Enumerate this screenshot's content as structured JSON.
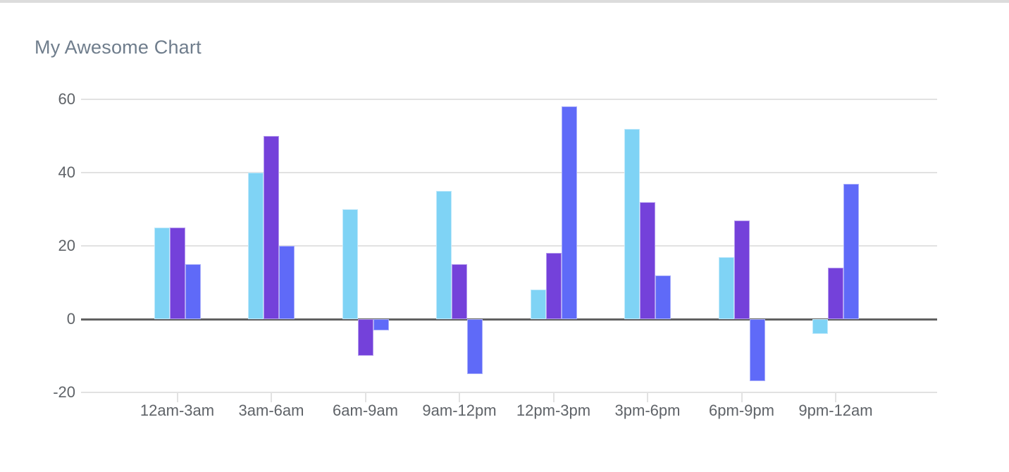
{
  "page": {
    "title": "My Awesome Chart"
  },
  "chart_data": {
    "type": "bar",
    "title": "My Awesome Chart",
    "categories": [
      "12am-3am",
      "3am-6am",
      "6am-9am",
      "9am-12pm",
      "12pm-3pm",
      "3pm-6pm",
      "6pm-9pm",
      "9pm-12am"
    ],
    "series": [
      {
        "color": "#7FD3F5",
        "stroke": "#C0E9FB",
        "values": [
          25,
          40,
          30,
          35,
          8,
          52,
          17,
          -4
        ]
      },
      {
        "color": "#7441DA",
        "stroke": "#B49BEE",
        "values": [
          25,
          50,
          -10,
          15,
          18,
          32,
          27,
          14
        ]
      },
      {
        "color": "#5F6AF8",
        "stroke": "#AAB0FB",
        "values": [
          15,
          20,
          -3,
          -15,
          58,
          12,
          -17,
          37
        ]
      }
    ],
    "yticks": [
      60,
      40,
      20,
      0,
      -20
    ],
    "ylim": [
      -20,
      60
    ],
    "xlabel": "",
    "ylabel": "",
    "grid": true,
    "legend": "none",
    "colors": {
      "grid_line": "#e2e2e2",
      "zero_line": "#616161",
      "tick_label": "#5f6368",
      "title_text": "#6F7D8C",
      "top_border": "#dcdcdc",
      "background": "#ffffff"
    }
  }
}
